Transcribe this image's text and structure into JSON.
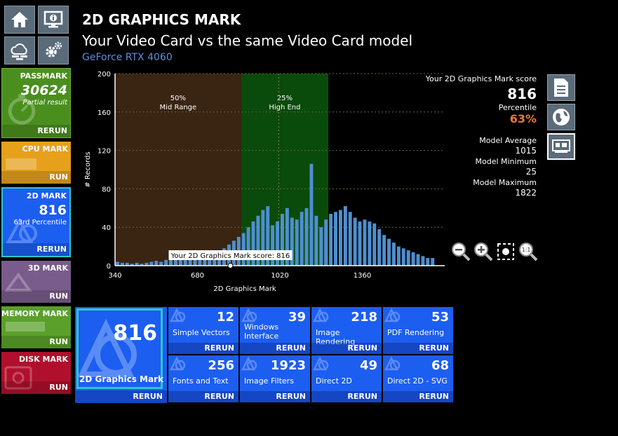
{
  "header": {
    "title": "2D GRAPHICS MARK",
    "subtitle": "Your Video Card vs the same Video Card model",
    "model": "GeForce RTX 4060"
  },
  "nav": {
    "icons": [
      "home-icon",
      "system-info-icon",
      "cloud-icon",
      "gear-icon"
    ]
  },
  "tiles": {
    "passmark": {
      "label": "PASSMARK",
      "value": "30624",
      "sub": "Partial result",
      "action": "RERUN",
      "color": "#4a8f1e"
    },
    "cpu": {
      "label": "CPU MARK",
      "action": "RUN",
      "color": "#e6a01c"
    },
    "twod": {
      "label": "2D MARK",
      "value": "816",
      "sub": "63rd Percentile",
      "action": "RERUN",
      "color": "#1c5ef0"
    },
    "threed": {
      "label": "3D MARK",
      "action": "RUN",
      "color": "#7a5c8c"
    },
    "memory": {
      "label": "MEMORY MARK",
      "action": "RUN",
      "color": "#5aa02a"
    },
    "disk": {
      "label": "DISK MARK",
      "action": "RUN",
      "color": "#b0102c"
    }
  },
  "score_panel": {
    "label": "Your 2D Graphics Mark score",
    "score": "816",
    "percentile_label": "Percentile",
    "percentile": "63%",
    "avg_label": "Model Average",
    "avg": "1015",
    "min_label": "Model Minimum",
    "min": "25",
    "max_label": "Model Maximum",
    "max": "1822"
  },
  "chart_data": {
    "type": "bar",
    "xlabel": "2D Graphics Mark",
    "ylabel": "# Records",
    "xlim": [
      340,
      1700
    ],
    "ylim": [
      0,
      200
    ],
    "xticks": [
      340,
      680,
      1020,
      1360
    ],
    "yticks": [
      0,
      40,
      80,
      120,
      160,
      200
    ],
    "bin_start": 340,
    "bin_width": 20,
    "values": [
      4,
      3,
      3,
      2,
      3,
      2,
      3,
      4,
      5,
      4,
      6,
      8,
      7,
      8,
      9,
      10,
      9,
      11,
      13,
      12,
      14,
      16,
      18,
      22,
      26,
      30,
      34,
      40,
      46,
      52,
      58,
      62,
      42,
      46,
      54,
      60,
      50,
      48,
      56,
      60,
      106,
      52,
      40,
      48,
      54,
      56,
      58,
      62,
      56,
      50,
      46,
      48,
      46,
      44,
      38,
      32,
      28,
      24,
      20,
      18,
      16,
      14,
      12,
      10,
      8,
      8
    ],
    "bands": [
      {
        "label": "50%",
        "sublabel": "Mid Range",
        "from": 340,
        "to": 860,
        "color": "#3a2412"
      },
      {
        "label": "25%",
        "sublabel": "High End",
        "from": 860,
        "to": 1220,
        "color": "#0a4a0a"
      }
    ],
    "marker": {
      "x": 816,
      "label": "Your 2D Graphics Mark score: 816"
    },
    "average_line": 1015,
    "bar_color": "#4f8fcf",
    "grid": true
  },
  "subtests": {
    "main": {
      "value": "816",
      "label": "2D Graphics Mark",
      "action": "RERUN"
    },
    "items": [
      {
        "value": "12",
        "label": "Simple Vectors",
        "action": "RERUN"
      },
      {
        "value": "39",
        "label": "Windows\nInterface",
        "action": "RERUN"
      },
      {
        "value": "218",
        "label": "Image Rendering",
        "action": "RERUN"
      },
      {
        "value": "53",
        "label": "PDF Rendering",
        "action": "RERUN"
      },
      {
        "value": "256",
        "label": "Fonts and Text",
        "action": "RERUN"
      },
      {
        "value": "1923",
        "label": "Image Filters",
        "action": "RERUN"
      },
      {
        "value": "49",
        "label": "Direct 2D",
        "action": "RERUN"
      },
      {
        "value": "68",
        "label": "Direct 2D - SVG",
        "action": "RERUN"
      }
    ]
  }
}
